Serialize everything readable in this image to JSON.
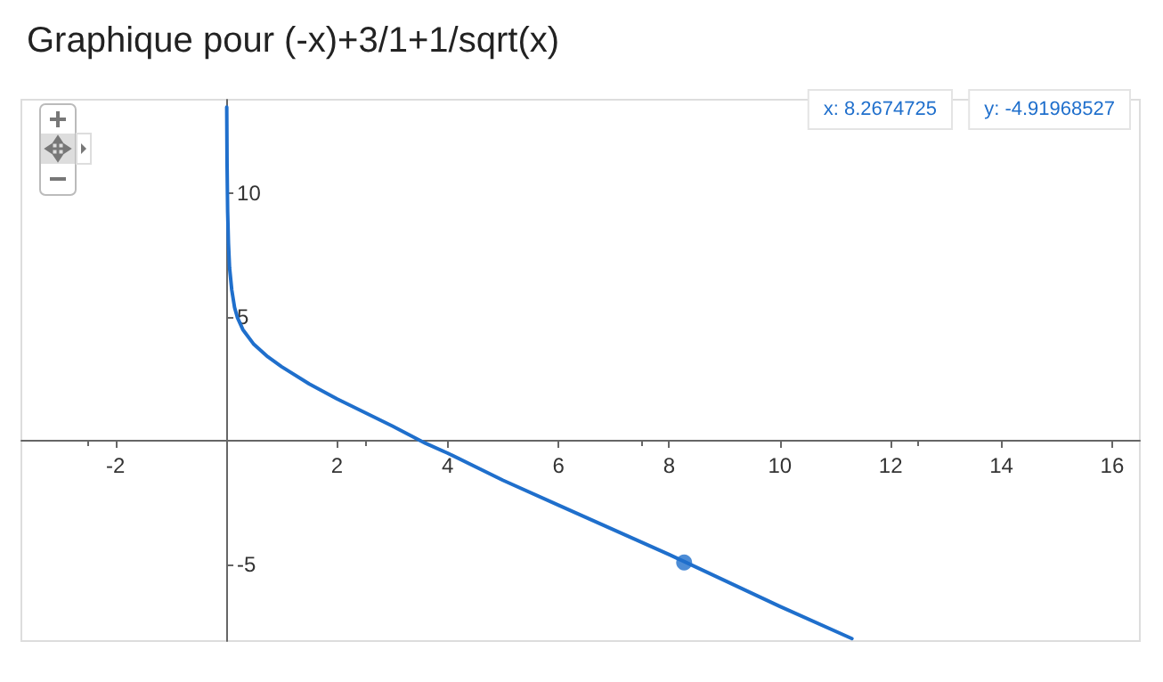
{
  "chart_data": {
    "type": "line",
    "title": "Graphique pour (-x)+3/1+1/sqrt(x)",
    "series": [
      {
        "color": "#1f6fcc",
        "x": [
          0.009,
          0.015,
          0.025,
          0.04,
          0.06,
          0.1,
          0.15,
          0.2,
          0.3,
          0.5,
          0.75,
          1,
          1.5,
          2,
          3,
          3.6,
          4,
          5,
          6,
          8,
          10,
          11.3
        ],
        "values": [
          13.5,
          11.2,
          9.3,
          8.0,
          7.0,
          6.1,
          5.4,
          5.0,
          4.5,
          3.9,
          3.4,
          3.0,
          2.3,
          1.7,
          0.6,
          -0.1,
          -0.5,
          -1.6,
          -2.6,
          -4.6,
          -6.7,
          -8.0
        ]
      },
      {
        "type": "scatter",
        "color": "#1f6fcc",
        "x": [
          8.27
        ],
        "values": [
          -4.92
        ]
      }
    ],
    "xlim": [
      -3.7,
      16.5
    ],
    "ylim": [
      -8.1,
      13.8
    ],
    "xticks": [
      -2,
      2,
      4,
      6,
      8,
      10,
      12,
      14,
      16
    ],
    "yticks": [
      -5,
      5,
      10
    ],
    "grid": false,
    "annotations": [
      "x: 8.2674725",
      "y: -4.91968527"
    ]
  }
}
